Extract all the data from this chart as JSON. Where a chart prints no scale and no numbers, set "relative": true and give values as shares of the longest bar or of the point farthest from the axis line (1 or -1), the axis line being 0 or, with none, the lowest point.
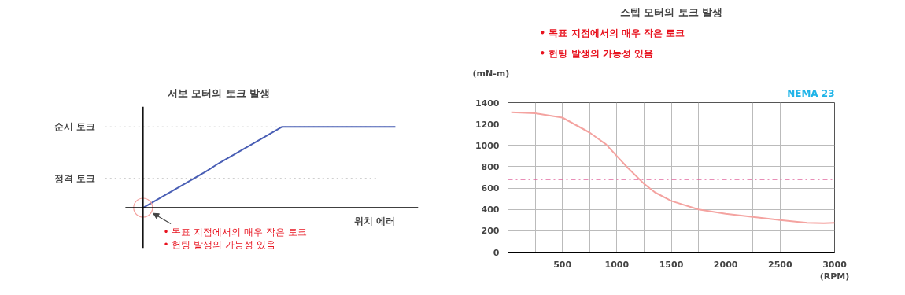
{
  "chart_data": [
    {
      "type": "line",
      "title": "서보 모터의 토크 발생",
      "xlabel": "위치 에러",
      "relative": true,
      "color": "#4a5fb5",
      "categories": [
        null,
        null,
        null,
        null,
        null,
        null,
        null,
        null,
        null,
        null,
        null,
        null,
        null,
        null,
        null,
        null,
        null,
        null,
        null,
        null,
        null
      ],
      "values": [
        0,
        0.09,
        0.18,
        0.27,
        0.36,
        0.45,
        0.55,
        0.64,
        0.73,
        0.82,
        0.91,
        1,
        1,
        1,
        1,
        1,
        1,
        1,
        1,
        1,
        1
      ],
      "ref_lines": [
        {
          "axis": "y",
          "value": 1,
          "label": "순시 토크",
          "color": "#999999",
          "line_style": "dotted"
        },
        {
          "axis": "y",
          "value": 0.36,
          "label": "정격 토크",
          "color": "#999999",
          "line_style": "dotted"
        }
      ],
      "annotations": [
        "• 목표 지점에서의 매우 작은 토크",
        "• 헌팅 발생의 가능성 있음"
      ],
      "grid": false
    },
    {
      "type": "line",
      "title": "스텝 모터의 토크 발생",
      "xlabel": "(RPM)",
      "ylabel": "(mN-m)",
      "color": "#f4a3a0",
      "x": [
        30,
        250,
        500,
        750,
        900,
        1000,
        1100,
        1250,
        1350,
        1500,
        1750,
        2000,
        2250,
        2500,
        2750,
        2900,
        3000
      ],
      "values": [
        1310,
        1300,
        1260,
        1120,
        1010,
        900,
        790,
        640,
        560,
        480,
        400,
        360,
        330,
        300,
        275,
        270,
        275
      ],
      "xlim": [
        0,
        3000
      ],
      "ylim": [
        0,
        1400
      ],
      "xticks": [
        {
          "value": 250,
          "label": null
        },
        500,
        {
          "value": 750,
          "label": null
        },
        1000,
        {
          "value": 1250,
          "label": null
        },
        1500,
        {
          "value": 1750,
          "label": null
        },
        2000,
        {
          "value": 2250,
          "label": null
        },
        2500,
        {
          "value": 2750,
          "label": null
        },
        3000
      ],
      "yticks": [
        0,
        200,
        400,
        600,
        800,
        1000,
        1200,
        1400
      ],
      "ref_lines": [
        {
          "axis": "y",
          "value": 680,
          "color": "#e0609a",
          "line_style": "dashdot"
        }
      ],
      "annotations": [
        "• 목표 지점에서의 매우 작은 토크",
        "• 헌팅 발생의 가능성 있음",
        "NEMA 23"
      ],
      "grid": true
    }
  ]
}
